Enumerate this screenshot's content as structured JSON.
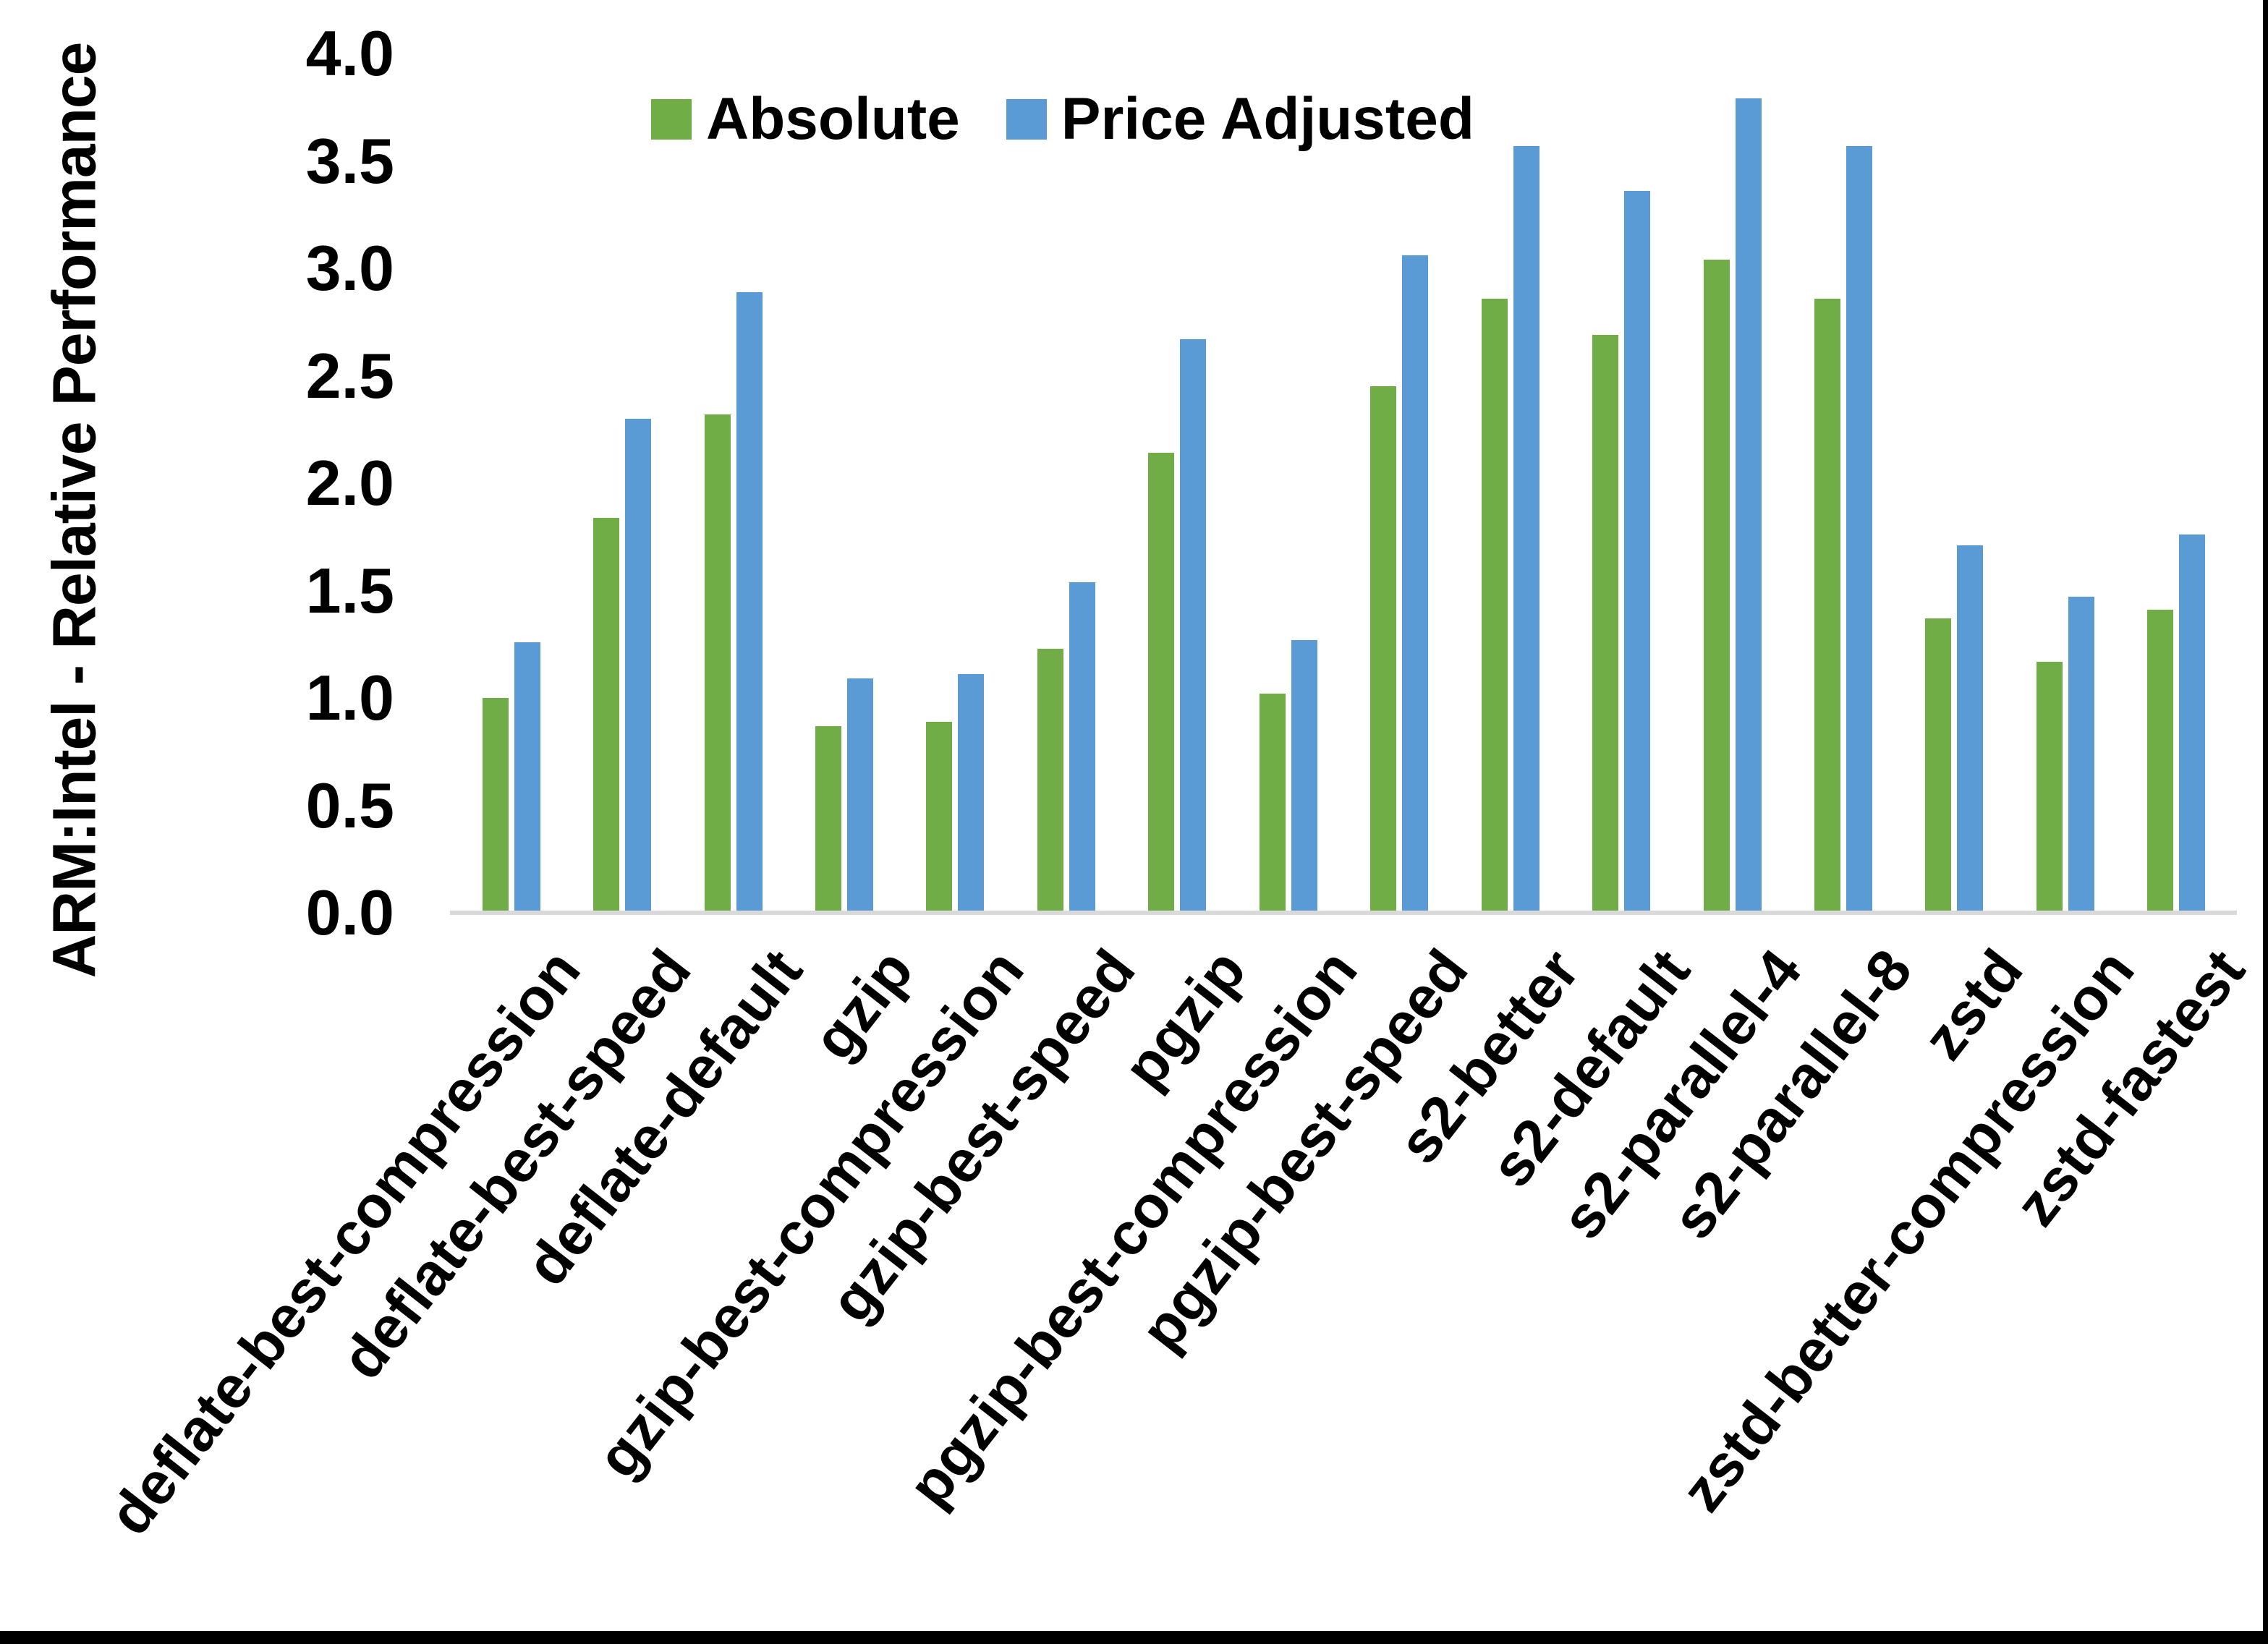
{
  "chart_data": {
    "type": "bar",
    "title": "",
    "xlabel": "",
    "ylabel": "ARM:Intel - Relative Performance",
    "ylim": [
      0.0,
      4.0
    ],
    "ytick_step": 0.5,
    "ytick_labels": [
      "0.0",
      "0.5",
      "1.0",
      "1.5",
      "2.0",
      "2.5",
      "3.0",
      "3.5",
      "4.0"
    ],
    "grid": false,
    "legend_position": "top-center",
    "categories": [
      "deflate-best-compression",
      "deflate-best-speed",
      "deflate-default",
      "gzip",
      "gzip-best-compression",
      "gzip-best-speed",
      "pgzip",
      "pgzip-best-compression",
      "pgzip-best-speed",
      "s2-better",
      "s2-default",
      "s2-parallel-4",
      "s2-parallel-8",
      "zstd",
      "zstd-better-compression",
      "zstd-fastest"
    ],
    "series": [
      {
        "name": "Absolute",
        "color": "#70AD47",
        "values": [
          1.0,
          1.84,
          2.32,
          0.87,
          0.89,
          1.23,
          2.14,
          1.02,
          2.45,
          2.86,
          2.69,
          3.04,
          2.86,
          1.37,
          1.17,
          1.41
        ]
      },
      {
        "name": "Price Adjusted",
        "color": "#5B9BD5",
        "values": [
          1.26,
          2.3,
          2.89,
          1.09,
          1.11,
          1.54,
          2.67,
          1.27,
          3.06,
          3.57,
          3.36,
          3.79,
          3.57,
          1.71,
          1.47,
          1.76
        ]
      }
    ],
    "axis_line_color": "#D9D9D9",
    "text_color": "#000000"
  }
}
